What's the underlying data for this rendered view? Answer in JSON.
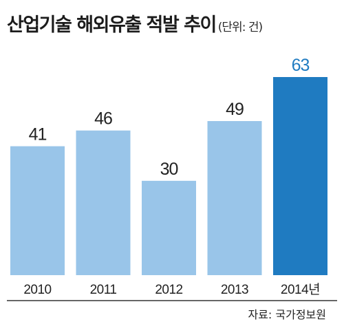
{
  "title": "산업기술 해외유출 적발 추이",
  "unit": "(단위: 건)",
  "source": "자료: 국가정보원",
  "colors": {
    "bar": "#99c5e9",
    "highlight": "#1f7bc1",
    "axis": "#333333",
    "text": "#222222"
  },
  "chart_data": {
    "type": "bar",
    "categories": [
      "2010",
      "2011",
      "2012",
      "2013",
      "2014년"
    ],
    "values": [
      41,
      46,
      30,
      49,
      63
    ],
    "data_labels": [
      "41",
      "46",
      "30",
      "49",
      "63"
    ],
    "highlight_index": 4,
    "title": "산업기술 해외유출 적발 추이",
    "xlabel": "",
    "ylabel": "",
    "unit": "건",
    "ylim": [
      0,
      63
    ],
    "grid": false,
    "legend": "none"
  }
}
